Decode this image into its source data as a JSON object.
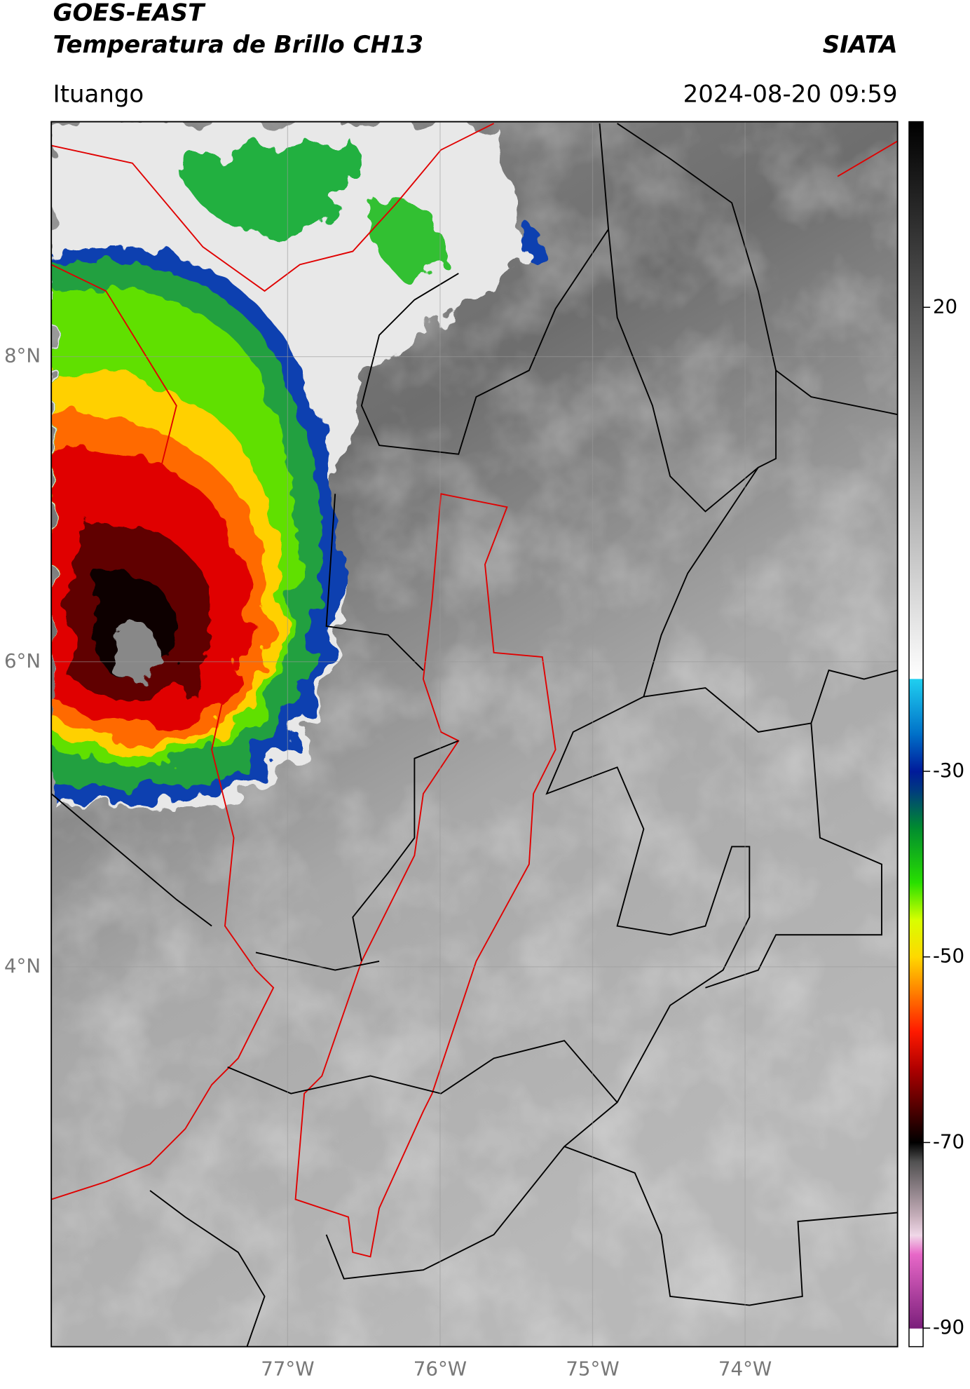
{
  "header": {
    "title": "GOES-EAST",
    "subtitle": "Temperatura de Brillo CH13",
    "source": "SIATA",
    "location": "Ituango",
    "datetime": "2024-08-20 09:59"
  },
  "map": {
    "xlim": [
      -78.55,
      -73.0
    ],
    "ylim": [
      1.51,
      9.54
    ],
    "xticks": [
      {
        "value": -77,
        "label": "77°W"
      },
      {
        "value": -76,
        "label": "76°W"
      },
      {
        "value": -75,
        "label": "75°W"
      },
      {
        "value": -74,
        "label": "74°W"
      }
    ],
    "yticks": [
      {
        "value": 8,
        "label": "8°N"
      },
      {
        "value": 6,
        "label": "6°N"
      },
      {
        "value": 4,
        "label": "4°N"
      }
    ],
    "grid": true
  },
  "colorbar": {
    "lim": [
      -92,
      40
    ],
    "ticks": [
      20,
      -30,
      -50,
      -70,
      -90
    ],
    "colormap": [
      [
        -92,
        "#ffffff"
      ],
      [
        -90,
        "#ffffff"
      ],
      [
        -90,
        "#7b1f7b"
      ],
      [
        -82,
        "#e868c8"
      ],
      [
        -80,
        "#f0d8e8"
      ],
      [
        -78,
        "#c8b0bc"
      ],
      [
        -72,
        "#505050"
      ],
      [
        -70,
        "#000000"
      ],
      [
        -68,
        "#2a0000"
      ],
      [
        -62,
        "#b00000"
      ],
      [
        -58,
        "#ff1a00"
      ],
      [
        -54,
        "#ff7a00"
      ],
      [
        -50,
        "#ffd800"
      ],
      [
        -46,
        "#d8ff00"
      ],
      [
        -42,
        "#28e000"
      ],
      [
        -36,
        "#008a30"
      ],
      [
        -32,
        "#003a80"
      ],
      [
        -30,
        "#001a9a"
      ],
      [
        -26,
        "#0070c8"
      ],
      [
        -20,
        "#20d0f0"
      ],
      [
        -20,
        "#ffffff"
      ],
      [
        40,
        "#000000"
      ]
    ]
  }
}
